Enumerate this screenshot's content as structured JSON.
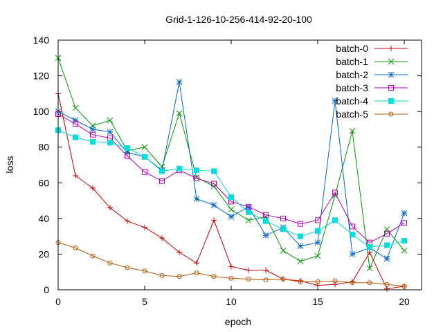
{
  "chart_data": {
    "type": "line",
    "title": "Grid-1-126-10-256-414-92-20-100",
    "xlabel": "epoch",
    "ylabel": "loss",
    "xlim": [
      0,
      21
    ],
    "ylim": [
      0,
      140
    ],
    "xticks": [
      0,
      5,
      10,
      15,
      20
    ],
    "yticks": [
      0,
      20,
      40,
      60,
      80,
      100,
      120,
      140
    ],
    "grid": false,
    "legend_position": "top-right",
    "x": [
      0,
      1,
      2,
      3,
      4,
      5,
      6,
      7,
      8,
      9,
      10,
      11,
      12,
      13,
      14,
      15,
      16,
      17,
      18,
      19,
      20
    ],
    "series": [
      {
        "name": "batch-0",
        "color": "#cc0000",
        "marker": "plus",
        "values": [
          110,
          64,
          57,
          46,
          38.5,
          35,
          29,
          21,
          15,
          39,
          13,
          11,
          11,
          6,
          5,
          2.5,
          3,
          4.5,
          21,
          0.5,
          2
        ]
      },
      {
        "name": "batch-1",
        "color": "#009900",
        "marker": "cross",
        "values": [
          130,
          102,
          92,
          95,
          78,
          80,
          69,
          99,
          63,
          58,
          45,
          39,
          41,
          22,
          16,
          19,
          53,
          89,
          12,
          34,
          22
        ]
      },
      {
        "name": "batch-2",
        "color": "#0066cc",
        "marker": "star",
        "values": [
          100,
          95,
          90,
          88.5,
          77,
          74.5,
          67,
          116.5,
          51,
          47.5,
          41,
          46.5,
          30.5,
          35,
          24.5,
          26.5,
          106,
          20,
          23.5,
          17.5,
          43
        ]
      },
      {
        "name": "batch-3",
        "color": "#bb00bb",
        "marker": "square-open",
        "values": [
          98.5,
          93,
          87,
          85,
          75,
          66,
          61,
          67,
          62.5,
          59.5,
          49.5,
          46.5,
          42,
          40,
          37,
          39,
          54.5,
          35.5,
          26.5,
          31.5,
          37.5
        ]
      },
      {
        "name": "batch-4",
        "color": "#00dddd",
        "marker": "square-filled",
        "values": [
          89.5,
          85.5,
          83,
          82.5,
          79.5,
          74.5,
          66.5,
          68,
          67,
          66.5,
          52,
          43.5,
          38.5,
          34,
          30,
          33,
          39,
          31,
          24,
          25,
          27.5
        ]
      },
      {
        "name": "batch-5",
        "color": "#bb5500",
        "marker": "circle-open",
        "values": [
          26.5,
          23.5,
          19,
          15,
          12.5,
          10.5,
          8,
          7.5,
          9.5,
          7.5,
          6.5,
          6,
          5.5,
          6,
          4.5,
          4.5,
          5,
          4,
          4,
          3,
          2
        ]
      }
    ]
  }
}
